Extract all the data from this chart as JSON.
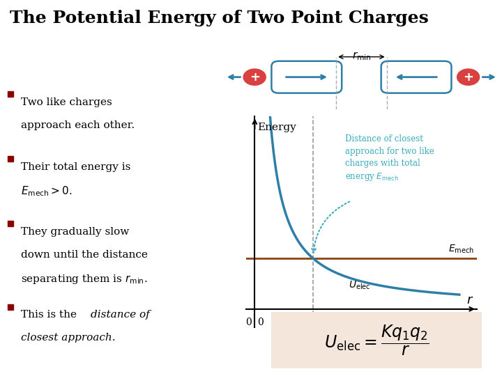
{
  "title": "The Potential Energy of Two Point Charges",
  "title_fontsize": 18,
  "title_color": "#000000",
  "bg_color": "#ffffff",
  "bullet_color": "#8B0000",
  "text_color": "#000000",
  "curve_color": "#2e7fa8",
  "emech_line_color": "#8B4513",
  "dashed_color": "#999999",
  "teal_color": "#3aacbe",
  "charge_color": "#d94040",
  "formula_bg": "#f5e6dc",
  "E_mech": 0.42,
  "r_start": 0.15,
  "r_end": 3.5,
  "xlim": [
    -0.15,
    3.8
  ],
  "ylim": [
    -0.15,
    1.6
  ]
}
